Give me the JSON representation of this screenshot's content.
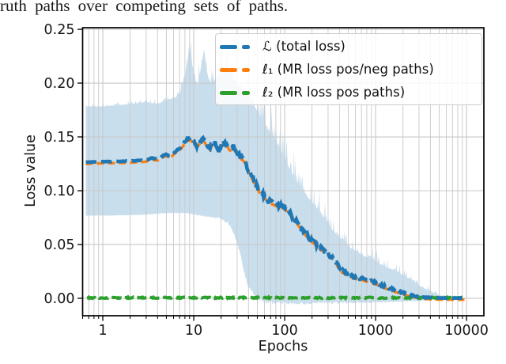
{
  "caption": {
    "text": "ruth paths over competing sets of paths."
  },
  "chart_data": {
    "type": "line",
    "title": "",
    "xlabel": "Epochs",
    "ylabel": "Loss value",
    "x_scale": "log",
    "xlim": [
      0.6,
      15500
    ],
    "ylim": [
      -0.0162,
      0.2515
    ],
    "x_ticks": [
      1,
      10,
      100,
      1000,
      10000
    ],
    "x_tick_labels": [
      "1",
      "10",
      "100",
      "1000",
      "10000"
    ],
    "y_ticks": [
      0.0,
      0.05,
      0.1,
      0.15,
      0.2,
      0.25
    ],
    "y_tick_labels": [
      "0.00",
      "0.05",
      "0.10",
      "0.15",
      "0.20",
      "0.25"
    ],
    "grid": {
      "on": true,
      "minor_x": true,
      "color": "#c8c8c8"
    },
    "legend_position": "upper right",
    "axis_color": "#000000",
    "band": {
      "name": "total-loss-std-band",
      "color": "#1f77b4",
      "opacity": 0.24,
      "domain": [
        0.65,
        6500
      ],
      "upper": [
        [
          0.65,
          0.178
        ],
        [
          1,
          0.178
        ],
        [
          1.5,
          0.179
        ],
        [
          2,
          0.18
        ],
        [
          3,
          0.182
        ],
        [
          4,
          0.18
        ],
        [
          5,
          0.184
        ],
        [
          6,
          0.185
        ],
        [
          7,
          0.188
        ],
        [
          8,
          0.205
        ],
        [
          9,
          0.232
        ],
        [
          10,
          0.206
        ],
        [
          11,
          0.196
        ],
        [
          12,
          0.212
        ],
        [
          13,
          0.23
        ],
        [
          14,
          0.207
        ],
        [
          15,
          0.198
        ],
        [
          17,
          0.2
        ],
        [
          20,
          0.206
        ],
        [
          23,
          0.214
        ],
        [
          26,
          0.202
        ],
        [
          30,
          0.196
        ],
        [
          35,
          0.19
        ],
        [
          40,
          0.184
        ],
        [
          45,
          0.178
        ],
        [
          50,
          0.17
        ],
        [
          57,
          0.162
        ],
        [
          65,
          0.153
        ],
        [
          74,
          0.148
        ],
        [
          85,
          0.138
        ],
        [
          100,
          0.126
        ],
        [
          120,
          0.113
        ],
        [
          150,
          0.1
        ],
        [
          180,
          0.091
        ],
        [
          225,
          0.081
        ],
        [
          280,
          0.07
        ],
        [
          335,
          0.061
        ],
        [
          405,
          0.054
        ],
        [
          500,
          0.046
        ],
        [
          650,
          0.04
        ],
        [
          745,
          0.037
        ],
        [
          1000,
          0.033
        ],
        [
          1300,
          0.027
        ],
        [
          1650,
          0.025
        ],
        [
          2000,
          0.02
        ],
        [
          2450,
          0.017
        ],
        [
          3000,
          0.011
        ],
        [
          4000,
          0.006
        ],
        [
          5000,
          0.0025
        ],
        [
          6500,
          0.001
        ]
      ],
      "lower": [
        [
          0.65,
          0.077
        ],
        [
          1,
          0.077
        ],
        [
          2,
          0.0775
        ],
        [
          3,
          0.078
        ],
        [
          5,
          0.0795
        ],
        [
          7,
          0.08
        ],
        [
          9,
          0.0795
        ],
        [
          12,
          0.078
        ],
        [
          15,
          0.0765
        ],
        [
          20,
          0.0755
        ],
        [
          24,
          0.071
        ],
        [
          28,
          0.06
        ],
        [
          32,
          0.045
        ],
        [
          36,
          0.025
        ],
        [
          40,
          0.012
        ],
        [
          45,
          0.006
        ],
        [
          50,
          0.002
        ],
        [
          60,
          -0.001
        ],
        [
          80,
          -0.003
        ],
        [
          150,
          -0.003
        ],
        [
          1000,
          -0.003
        ],
        [
          3000,
          -0.002
        ],
        [
          4500,
          -0.001
        ],
        [
          6500,
          0.0
        ]
      ],
      "roughness": [
        [
          0.65,
          0.001
        ],
        [
          5,
          0.002
        ],
        [
          8,
          0.006
        ],
        [
          15,
          0.008
        ],
        [
          30,
          0.012
        ],
        [
          60,
          0.015
        ],
        [
          100,
          0.014
        ],
        [
          200,
          0.011
        ],
        [
          400,
          0.01
        ],
        [
          1000,
          0.006
        ],
        [
          2000,
          0.004
        ],
        [
          4000,
          0.002
        ],
        [
          6500,
          0.0005
        ]
      ]
    },
    "series": [
      {
        "name": "total-loss",
        "legend_label": "ℒ (total loss)",
        "color": "#1f77b4",
        "line_style": "dashed",
        "line_width": 4.6,
        "dash": [
          13.5,
          6
        ],
        "jitter": [
          [
            0.65,
            0
          ],
          [
            7,
            0.0005
          ],
          [
            9,
            0.002
          ],
          [
            15,
            0.0025
          ],
          [
            30,
            0.002
          ],
          [
            60,
            0.0025
          ],
          [
            150,
            0.002
          ],
          [
            400,
            0.0018
          ],
          [
            1000,
            0.0012
          ],
          [
            2500,
            0.0008
          ],
          [
            5000,
            0.0002
          ],
          [
            9500,
            0.0001
          ]
        ],
        "points": [
          [
            0.65,
            0.1265
          ],
          [
            1,
            0.127
          ],
          [
            1.5,
            0.1272
          ],
          [
            2,
            0.1276
          ],
          [
            2.5,
            0.128
          ],
          [
            3,
            0.1285
          ],
          [
            3.5,
            0.1305
          ],
          [
            4,
            0.1295
          ],
          [
            4.5,
            0.132
          ],
          [
            5,
            0.134
          ],
          [
            5.5,
            0.1315
          ],
          [
            6,
            0.135
          ],
          [
            6.5,
            0.1375
          ],
          [
            7,
            0.139
          ],
          [
            7.5,
            0.142
          ],
          [
            8,
            0.1455
          ],
          [
            8.7,
            0.1485
          ],
          [
            9.5,
            0.1475
          ],
          [
            10,
            0.1455
          ],
          [
            10.7,
            0.1415
          ],
          [
            11.5,
            0.1445
          ],
          [
            12.3,
            0.1465
          ],
          [
            13,
            0.1475
          ],
          [
            14,
            0.1425
          ],
          [
            15,
            0.1385
          ],
          [
            16,
            0.1445
          ],
          [
            17,
            0.1465
          ],
          [
            18,
            0.1415
          ],
          [
            19,
            0.1375
          ],
          [
            20,
            0.1415
          ],
          [
            21.5,
            0.146
          ],
          [
            23,
            0.1435
          ],
          [
            25,
            0.1385
          ],
          [
            27,
            0.1405
          ],
          [
            29,
            0.1375
          ],
          [
            31,
            0.1345
          ],
          [
            33,
            0.131
          ],
          [
            36,
            0.1285
          ],
          [
            39,
            0.121
          ],
          [
            42,
            0.1155
          ],
          [
            46,
            0.109
          ],
          [
            50,
            0.103
          ],
          [
            55,
            0.0975
          ],
          [
            60,
            0.0945
          ],
          [
            66,
            0.0915
          ],
          [
            74,
            0.0885
          ],
          [
            85,
            0.0865
          ],
          [
            100,
            0.0845
          ],
          [
            115,
            0.079
          ],
          [
            135,
            0.0715
          ],
          [
            150,
            0.066
          ],
          [
            170,
            0.06
          ],
          [
            195,
            0.0545
          ],
          [
            225,
            0.05
          ],
          [
            260,
            0.0455
          ],
          [
            300,
            0.0415
          ],
          [
            335,
            0.038
          ],
          [
            370,
            0.0335
          ],
          [
            405,
            0.0265
          ],
          [
            450,
            0.0245
          ],
          [
            500,
            0.0225
          ],
          [
            560,
            0.0205
          ],
          [
            630,
            0.019
          ],
          [
            700,
            0.0185
          ],
          [
            800,
            0.017
          ],
          [
            900,
            0.0158
          ],
          [
            1000,
            0.0147
          ],
          [
            1150,
            0.0125
          ],
          [
            1300,
            0.0105
          ],
          [
            1500,
            0.0088
          ],
          [
            1650,
            0.0074
          ],
          [
            1850,
            0.006
          ],
          [
            2050,
            0.005
          ],
          [
            2250,
            0.0038
          ],
          [
            2450,
            0.0029
          ],
          [
            2700,
            0.0022
          ],
          [
            3000,
            0.0016
          ],
          [
            3400,
            0.001
          ],
          [
            3700,
            0.0008
          ],
          [
            4200,
            0.0005
          ],
          [
            5000,
            0.0003
          ],
          [
            6000,
            0.0002
          ],
          [
            7500,
            0.0002
          ],
          [
            9500,
            0.0002
          ]
        ]
      },
      {
        "name": "mr-loss-pos-neg-paths",
        "legend_label": "ℓ₁ (MR loss pos/neg paths)",
        "color": "#ff7f0e",
        "line_style": "dashed",
        "line_width": 3.4,
        "dash": [
          9,
          5
        ],
        "points_ref": 0,
        "offset": -0.0015
      },
      {
        "name": "mr-loss-pos-paths",
        "legend_label": "ℓ₂ (MR loss pos paths)",
        "color": "#2ca02c",
        "line_style": "dashed",
        "line_width": 4.0,
        "dash": [
          13,
          5.5
        ],
        "jitter_amp": 0.0006,
        "points": [
          [
            0.67,
            0.0005
          ],
          [
            9000,
            0.0005
          ]
        ]
      }
    ]
  }
}
